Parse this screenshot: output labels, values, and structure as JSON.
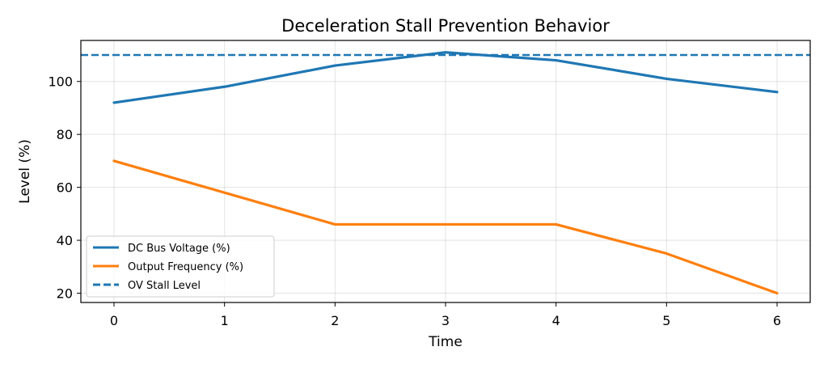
{
  "chart_data": {
    "type": "line",
    "title": "Deceleration Stall Prevention Behavior",
    "xlabel": "Time",
    "ylabel": "Level (%)",
    "x": [
      0,
      1,
      2,
      3,
      4,
      5,
      6
    ],
    "xlim": [
      -0.3,
      6.3
    ],
    "ylim": [
      16.5,
      115.5
    ],
    "xticks": [
      0,
      1,
      2,
      3,
      4,
      5,
      6
    ],
    "yticks": [
      20,
      40,
      60,
      80,
      100
    ],
    "grid": true,
    "legend_position": "lower-left",
    "series": [
      {
        "name": "DC Bus Voltage (%)",
        "values": [
          92,
          98,
          106,
          111,
          108,
          101,
          96
        ],
        "color": "#1f77b4",
        "style": "solid"
      },
      {
        "name": "Output Frequency (%)",
        "values": [
          70,
          58,
          46,
          46,
          46,
          35,
          20
        ],
        "color": "#ff7f0e",
        "style": "solid"
      }
    ],
    "reference_lines": [
      {
        "name": "OV Stall Level",
        "y": 110,
        "color": "#1f77b4",
        "style": "dashed"
      }
    ]
  }
}
